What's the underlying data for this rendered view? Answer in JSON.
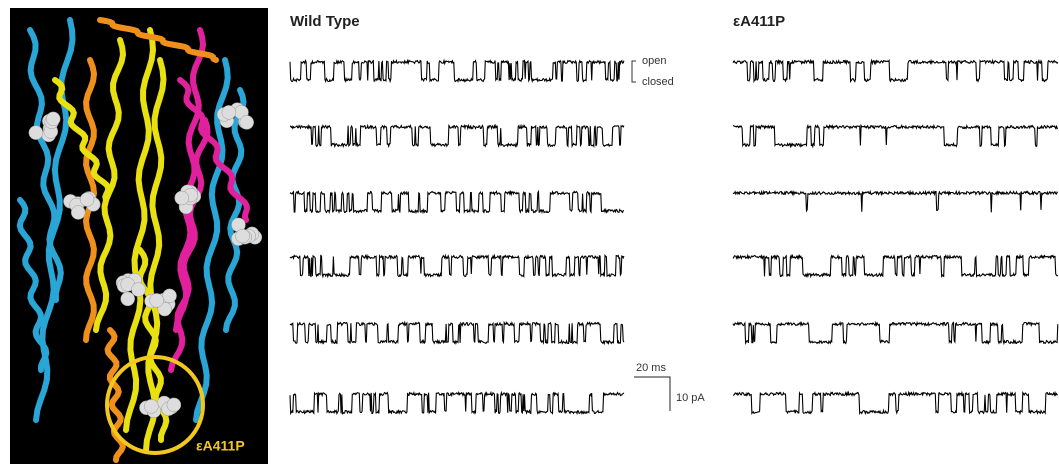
{
  "structure": {
    "label": "εA411P"
  },
  "wild_type": {
    "title": "Wild Type"
  },
  "mutant": {
    "title": "εA411P"
  },
  "states": {
    "open": "open",
    "closed": "closed"
  },
  "scale_bar": {
    "time": "20 ms",
    "current": "10 pA"
  }
}
